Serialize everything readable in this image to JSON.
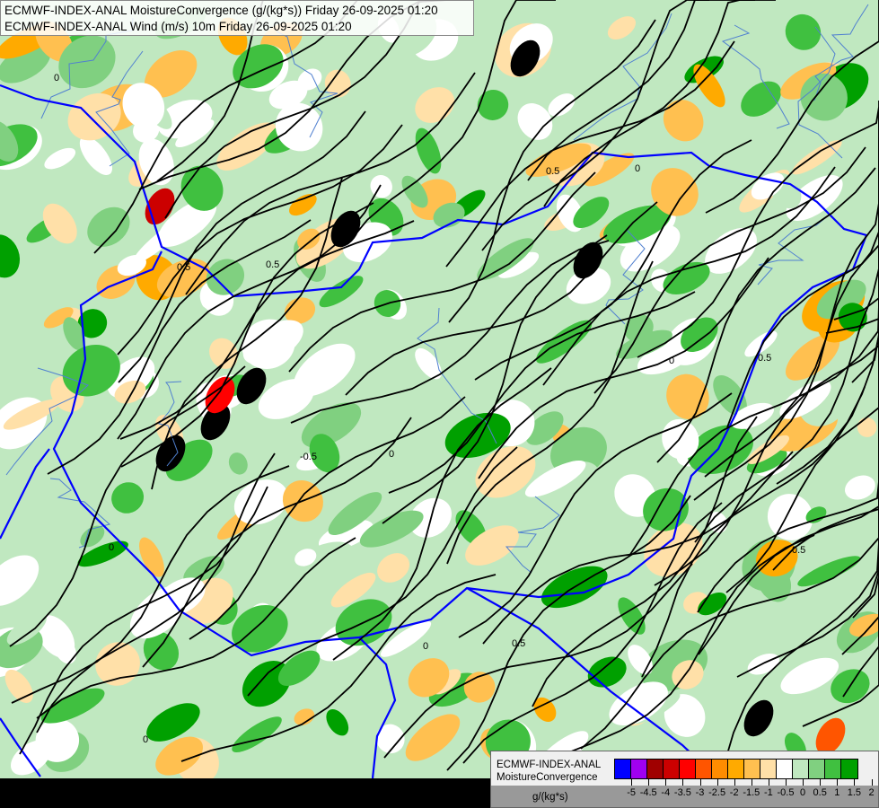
{
  "titles": {
    "line1": "ECMWF-INDEX-ANAL MoistureConvergence (g/(kg*s)) Friday 26-09-2025 01:20",
    "line2": "ECMWF-INDEX-ANAL Wind (m/s) 10m Friday 26-09-2025 01:20"
  },
  "legend": {
    "model": "ECMWF-INDEX-ANAL",
    "parameter": "MoistureConvergence",
    "unit": "g/(kg*s)",
    "colors": [
      "#0000ff",
      "#a000f0",
      "#a00000",
      "#cc0000",
      "#ff0000",
      "#ff5500",
      "#ff8c00",
      "#ffaa00",
      "#ffc050",
      "#ffe0a8",
      "#ffffff",
      "#c0e8c0",
      "#80d080",
      "#40c040",
      "#00a000"
    ],
    "tick_labels": [
      "-5",
      "-4.5",
      "-4",
      "-3.5",
      "-3",
      "-2.5",
      "-2",
      "-1.5",
      "-1",
      "-0.5",
      "0",
      "0.5",
      "1",
      "1.5",
      "2"
    ]
  },
  "map": {
    "border_color": "#0000ff",
    "river_color": "#5080d0",
    "streamline_color": "#000000",
    "contour_labels": [
      "0",
      "0.5",
      "-0.5",
      "0",
      "0.5",
      "0",
      "0.5",
      "0",
      "0.5",
      "0",
      "0.5",
      "0",
      "0.5",
      "0"
    ]
  }
}
